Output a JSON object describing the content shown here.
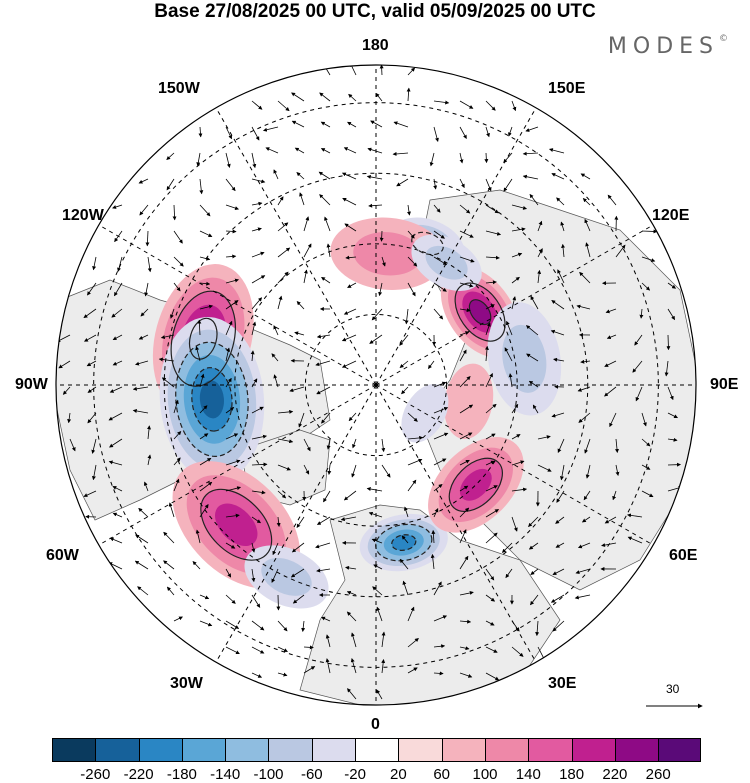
{
  "title": "Base 27/08/2025 00 UTC, valid 05/09/2025 00 UTC",
  "brand": {
    "name": "MODES",
    "mark": "©"
  },
  "longitude_labels": {
    "deg180": "180",
    "w150": "150W",
    "e150": "150E",
    "w120": "120W",
    "e120": "120E",
    "w90": "90W",
    "e90": "90E",
    "w60": "60W",
    "e60": "60E",
    "w30": "30W",
    "e30": "30E",
    "deg0": "0"
  },
  "vector_scale": {
    "value": "30"
  },
  "colorbar": {
    "colors": [
      "#0a3a5e",
      "#16619a",
      "#2a86c4",
      "#5aa6d6",
      "#8fbde0",
      "#bac8e2",
      "#dcdcee",
      "#ffffff",
      "#f9dada",
      "#f5b3bd",
      "#ee88a8",
      "#e25aa0",
      "#c0208f",
      "#8e0a85",
      "#5a0a78"
    ],
    "tick_labels": [
      "-260",
      "-220",
      "-180",
      "-140",
      "-100",
      "-60",
      "-20",
      "20",
      "60",
      "100",
      "140",
      "180",
      "220",
      "260"
    ]
  },
  "anomaly_centers": [
    {
      "lon": -105,
      "lat": 52,
      "value": 230,
      "r": 12
    },
    {
      "lon": 125,
      "lat": 63,
      "value": 210,
      "r": 8
    },
    {
      "lon": -85,
      "lat": 55,
      "value": -260,
      "r": 13
    },
    {
      "lon": -45,
      "lat": 48,
      "value": 160,
      "r": 12
    },
    {
      "lon": 10,
      "lat": 56,
      "value": -230,
      "r": 7
    },
    {
      "lon": 45,
      "lat": 60,
      "value": 160,
      "r": 9
    },
    {
      "lon": 160,
      "lat": 58,
      "value": -130,
      "r": 6
    },
    {
      "lon": 175,
      "lat": 62,
      "value": 80,
      "r": 9
    },
    {
      "lon": 150,
      "lat": 60,
      "value": -90,
      "r": 6
    },
    {
      "lon": 100,
      "lat": 58,
      "value": -110,
      "r": 9
    },
    {
      "lon": -25,
      "lat": 45,
      "value": -80,
      "r": 7
    },
    {
      "lon": 80,
      "lat": 70,
      "value": 50,
      "r": 6
    },
    {
      "lon": 60,
      "lat": 78,
      "value": -50,
      "r": 5
    }
  ]
}
